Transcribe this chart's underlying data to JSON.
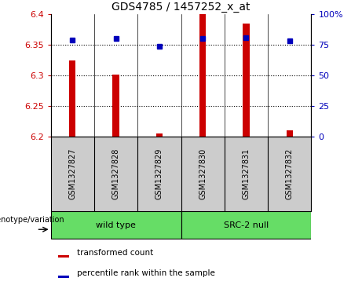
{
  "title": "GDS4785 / 1457252_x_at",
  "samples": [
    "GSM1327827",
    "GSM1327828",
    "GSM1327829",
    "GSM1327830",
    "GSM1327831",
    "GSM1327832"
  ],
  "bar_values": [
    6.325,
    6.302,
    6.205,
    6.4,
    6.385,
    6.21
  ],
  "percentile_values": [
    79,
    80,
    74,
    80,
    81,
    78
  ],
  "ylim_left": [
    6.2,
    6.4
  ],
  "ylim_right": [
    0,
    100
  ],
  "yticks_left": [
    6.2,
    6.25,
    6.3,
    6.35,
    6.4
  ],
  "yticks_right": [
    0,
    25,
    50,
    75,
    100
  ],
  "ytick_labels_right": [
    "0",
    "25",
    "50",
    "75",
    "100%"
  ],
  "bar_color": "#cc0000",
  "dot_color": "#0000bb",
  "bar_width": 0.15,
  "group_label": "genotype/variation",
  "legend_items": [
    {
      "color": "#cc0000",
      "label": "transformed count"
    },
    {
      "color": "#0000bb",
      "label": "percentile rank within the sample"
    }
  ],
  "background_color": "#ffffff",
  "plot_bg_color": "#ffffff",
  "tick_area_bg": "#cccccc",
  "group_box_color": "#66dd66"
}
